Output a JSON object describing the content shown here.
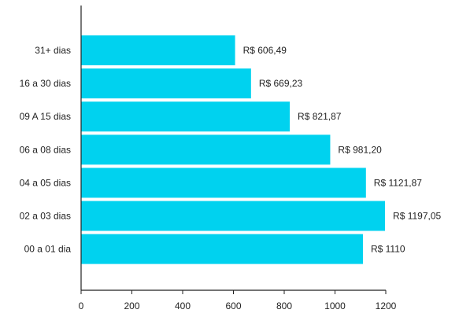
{
  "chart_data": {
    "type": "bar",
    "orientation": "horizontal",
    "categories": [
      "31+ dias",
      "16 a 30 dias",
      "09 A 15 dias",
      "06 a 08 dias",
      "04 a 05 dias",
      "02 a 03 dias",
      "00 a 01 dia"
    ],
    "values": [
      606.49,
      669.23,
      821.87,
      981.2,
      1121.87,
      1197.05,
      1110
    ],
    "value_labels": [
      "R$ 606,49",
      "R$ 669,23",
      "R$ 821,87",
      "R$ 981,20",
      "R$ 1121,87",
      "R$ 1197,05",
      "R$ 1110"
    ],
    "xlim": [
      0,
      1200
    ],
    "x_ticks": [
      0,
      200,
      400,
      600,
      800,
      1000,
      1200
    ],
    "x_tick_labels": [
      "0",
      "200",
      "400",
      "600",
      "800",
      "1000",
      "1200"
    ],
    "bar_color": "#00d2ef",
    "grid": false,
    "legend": false,
    "title": "",
    "xlabel": "",
    "ylabel": ""
  }
}
